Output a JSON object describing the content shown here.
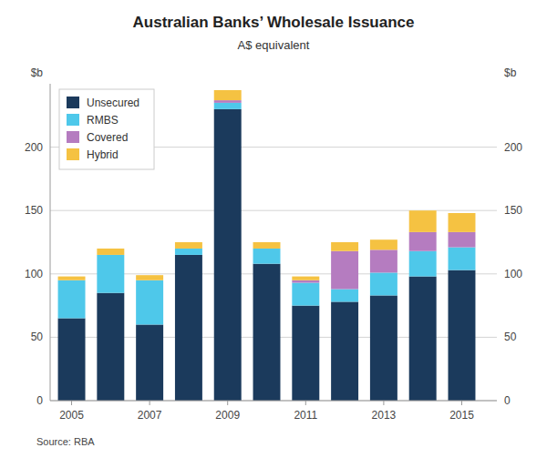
{
  "chart_data": {
    "type": "bar",
    "stacked": true,
    "title": "Australian Banks’ Wholesale Issuance",
    "subtitle": "A$ equivalent",
    "ylabel": "$b",
    "y2label": "$b",
    "source": "Source:    RBA",
    "x": [
      2005,
      2006,
      2007,
      2008,
      2009,
      2010,
      2011,
      2012,
      2013,
      2014,
      2015
    ],
    "series": [
      {
        "name": "Unsecured",
        "color": "#1b3a5c",
        "values": [
          65,
          85,
          60,
          115,
          230,
          108,
          75,
          78,
          83,
          98,
          103
        ]
      },
      {
        "name": "RMBS",
        "color": "#4ec8ea",
        "values": [
          30,
          30,
          35,
          5,
          5,
          12,
          18,
          10,
          18,
          20,
          18
        ]
      },
      {
        "name": "Covered",
        "color": "#b57cc0",
        "values": [
          0,
          0,
          0,
          0,
          2,
          0,
          2,
          30,
          18,
          15,
          12
        ]
      },
      {
        "name": "Hybrid",
        "color": "#f5c242",
        "values": [
          3,
          5,
          4,
          5,
          8,
          5,
          3,
          7,
          8,
          17,
          15
        ]
      }
    ],
    "xlim": [
      2004.45,
      2015.9
    ],
    "xticks": [
      2005,
      2007,
      2009,
      2011,
      2013,
      2015
    ],
    "ylim": [
      0,
      250
    ],
    "yticks": [
      0,
      50,
      100,
      150,
      200
    ],
    "y2lim": [
      0,
      250
    ],
    "y2ticks": [
      0,
      50,
      100,
      150,
      200
    ],
    "grid": true,
    "legend": "upper left"
  }
}
